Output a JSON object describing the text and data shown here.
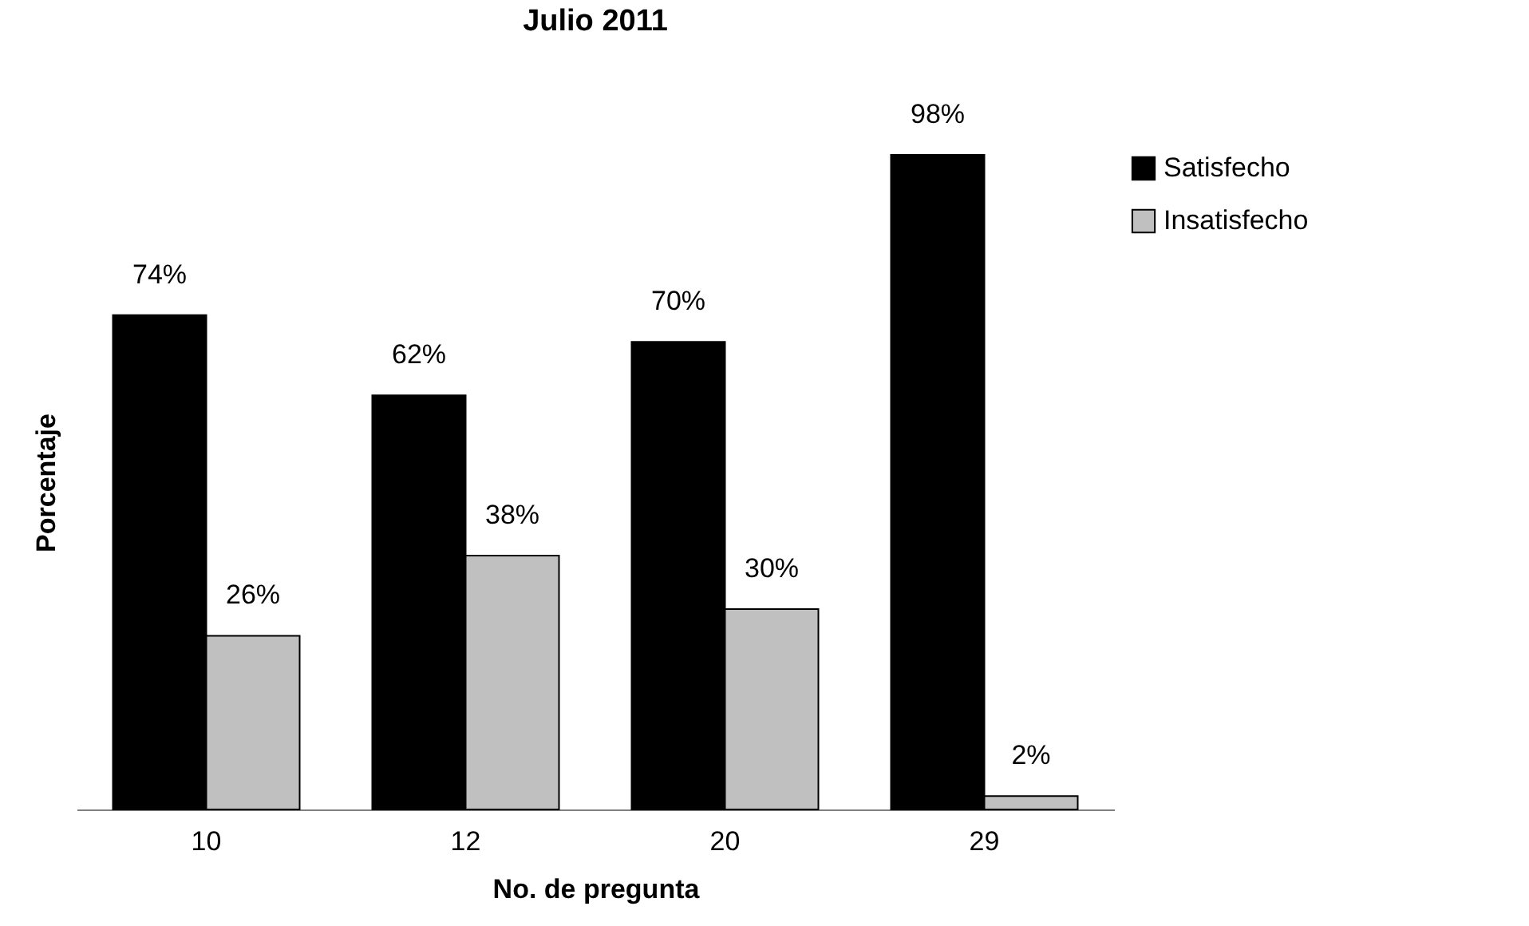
{
  "chart_data": {
    "type": "bar",
    "title": "Julio 2011",
    "xlabel": "No. de pregunta",
    "ylabel": "Porcentaje",
    "categories": [
      "10",
      "12",
      "20",
      "29"
    ],
    "series": [
      {
        "name": "Satisfecho",
        "color": "#000000",
        "values": [
          74,
          62,
          70,
          98
        ],
        "value_labels": [
          "74%",
          "62%",
          "70%",
          "98%"
        ]
      },
      {
        "name": "Insatisfecho",
        "color": "#c0c0c0",
        "values": [
          26,
          38,
          30,
          2
        ],
        "value_labels": [
          "26%",
          "38%",
          "30%",
          "2%"
        ]
      }
    ],
    "legend": "right"
  }
}
